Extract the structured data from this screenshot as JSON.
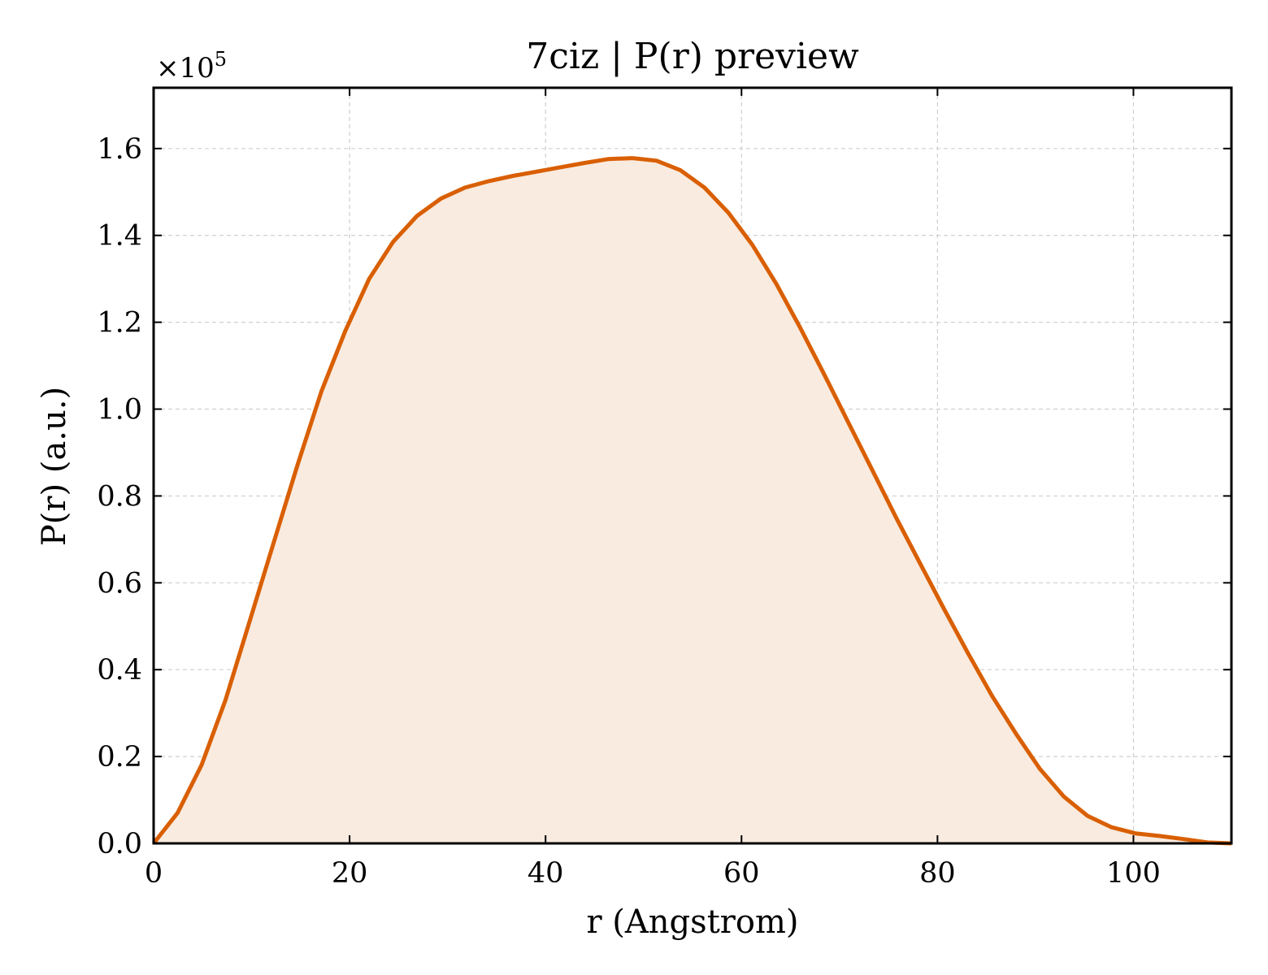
{
  "chart_data": {
    "type": "area",
    "title": "7ciz | P(r) preview",
    "xlabel": "r (Angstrom)",
    "ylabel": "P(r) (a.u.)",
    "y_multiplier_base": "×10",
    "y_multiplier_exp": "5",
    "y_scale": 100000,
    "xlim": [
      0,
      110
    ],
    "ylim": [
      0,
      1.74
    ],
    "x_ticks": [
      0,
      20,
      40,
      60,
      80,
      100
    ],
    "x_tick_labels": [
      "0",
      "20",
      "40",
      "60",
      "80",
      "100"
    ],
    "y_ticks": [
      0,
      0.2,
      0.4,
      0.6,
      0.8,
      1.0,
      1.2,
      1.4,
      1.6
    ],
    "y_tick_labels": [
      "0.0",
      "0.2",
      "0.4",
      "0.6",
      "0.8",
      "1.0",
      "1.2",
      "1.4",
      "1.6"
    ],
    "grid": true,
    "line_color": "#d95f02",
    "fill_color": "#f9ebe0",
    "series": [
      {
        "x": [
          0,
          2.44,
          4.89,
          7.33,
          9.78,
          12.22,
          14.67,
          17.11,
          19.56,
          22.0,
          24.44,
          26.89,
          29.33,
          31.78,
          34.22,
          36.67,
          39.11,
          41.56,
          44.0,
          46.44,
          48.89,
          51.33,
          53.78,
          56.22,
          58.67,
          61.11,
          63.56,
          66.0,
          68.44,
          70.89,
          73.33,
          75.78,
          78.22,
          80.67,
          83.11,
          85.56,
          88.0,
          90.44,
          92.89,
          95.33,
          97.78,
          100.22,
          102.67,
          105.11,
          107.56,
          110.0
        ],
        "values": [
          0.0,
          0.07,
          0.18,
          0.33,
          0.51,
          0.69,
          0.87,
          1.04,
          1.18,
          1.3,
          1.385,
          1.445,
          1.485,
          1.51,
          1.525,
          1.537,
          1.547,
          1.557,
          1.567,
          1.576,
          1.578,
          1.572,
          1.55,
          1.51,
          1.452,
          1.378,
          1.288,
          1.187,
          1.08,
          0.97,
          0.86,
          0.75,
          0.645,
          0.54,
          0.438,
          0.34,
          0.253,
          0.172,
          0.108,
          0.063,
          0.037,
          0.023,
          0.017,
          0.01,
          0.002,
          0.0
        ]
      }
    ]
  }
}
